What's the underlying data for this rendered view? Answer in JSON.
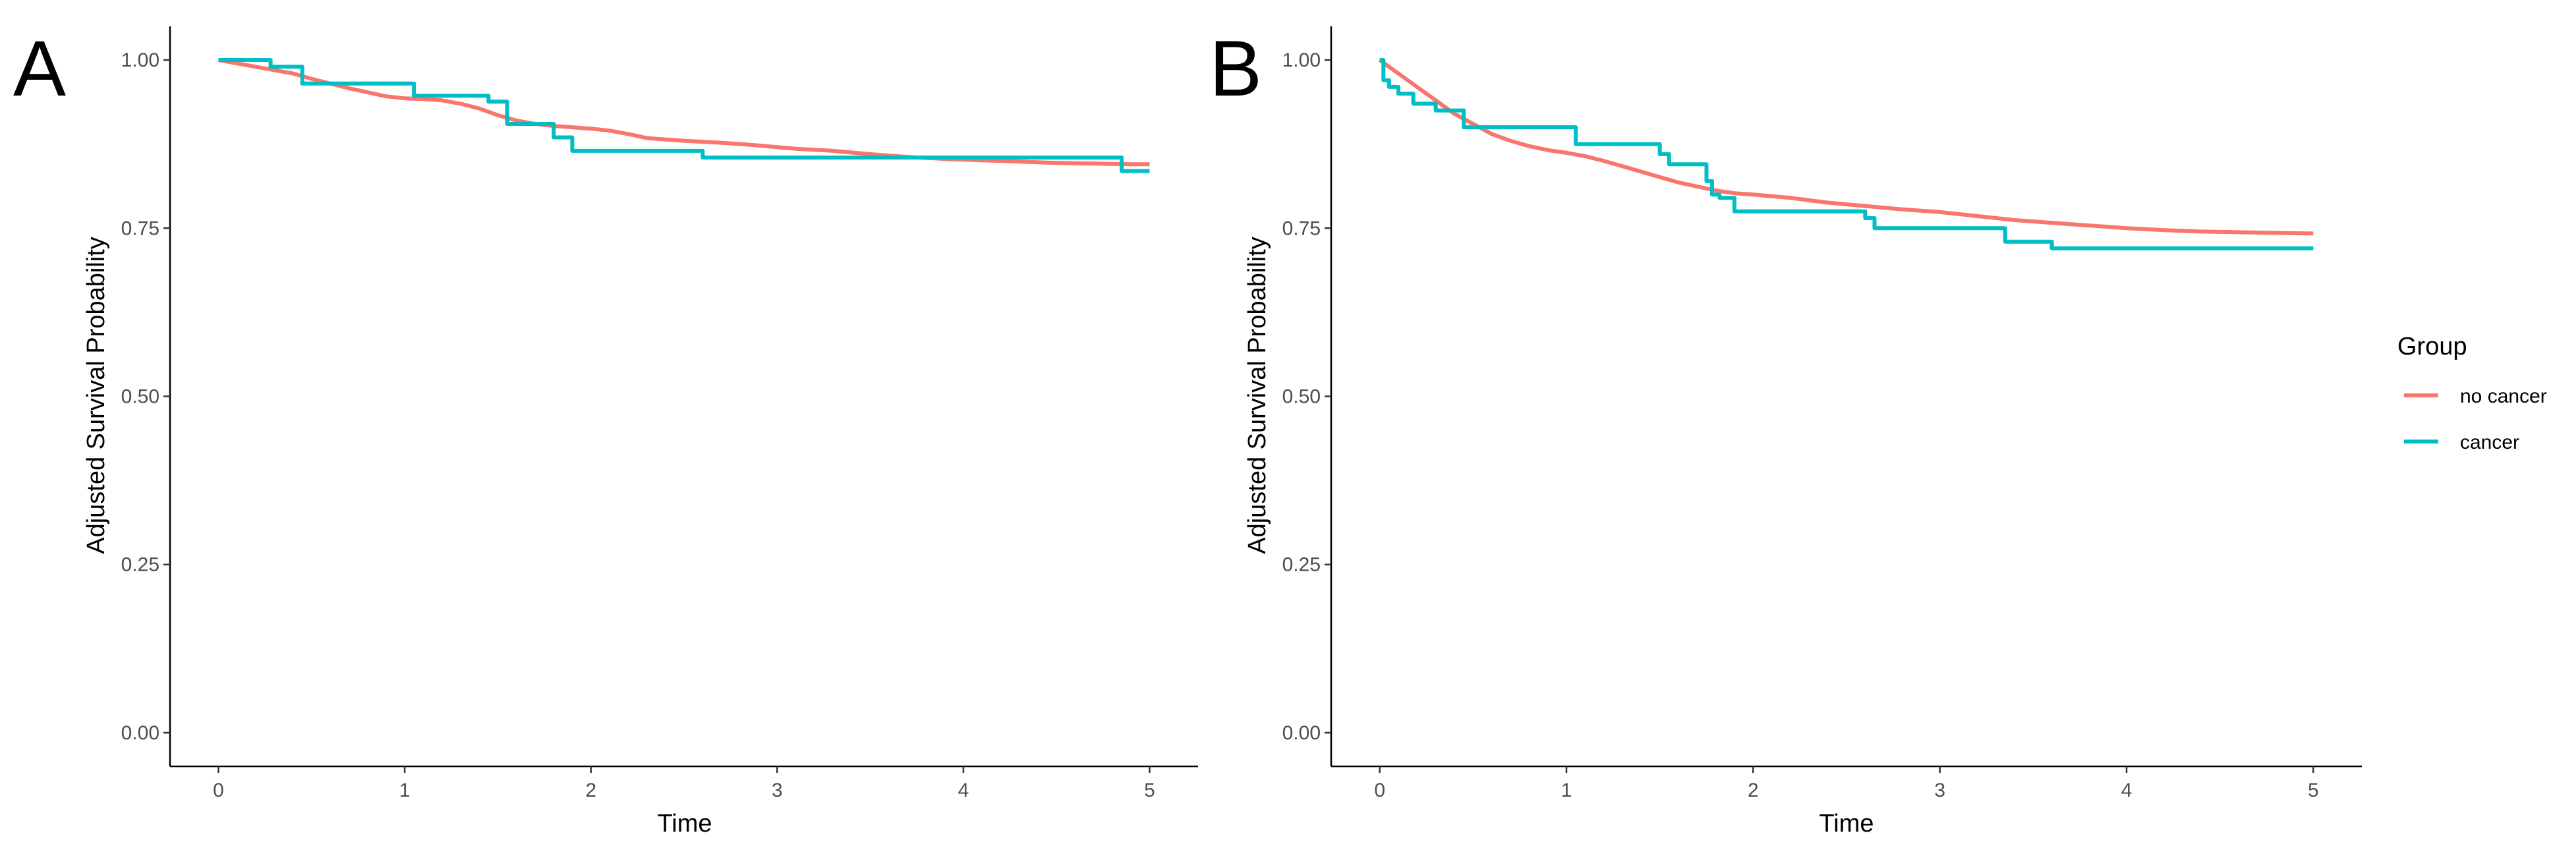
{
  "chart_data": [
    {
      "type": "line",
      "panel_label": "A",
      "xlabel": "Time",
      "ylabel": "Adjusted Survival Probability",
      "xlim": [
        -0.26,
        5.26
      ],
      "ylim": [
        -0.05,
        1.05
      ],
      "xticks": [
        0,
        1,
        2,
        3,
        4,
        5
      ],
      "xtick_labels": [
        "0",
        "1",
        "2",
        "3",
        "4",
        "5"
      ],
      "yticks": [
        0.0,
        0.25,
        0.5,
        0.75,
        1.0
      ],
      "ytick_labels": [
        "0.00",
        "0.25",
        "0.50",
        "0.75",
        "1.00"
      ],
      "grid": false,
      "series": [
        {
          "name": "no cancer",
          "color": "#F8766D",
          "step": false,
          "x": [
            0,
            0.1,
            0.2,
            0.3,
            0.4,
            0.5,
            0.6,
            0.7,
            0.8,
            0.9,
            1.0,
            1.1,
            1.2,
            1.3,
            1.4,
            1.5,
            1.6,
            1.7,
            1.8,
            1.9,
            2.0,
            2.1,
            2.2,
            2.3,
            2.5,
            2.7,
            2.9,
            3.1,
            3.3,
            3.5,
            3.7,
            3.9,
            4.1,
            4.3,
            4.5,
            4.7,
            4.9,
            5.0
          ],
          "y": [
            1.0,
            0.995,
            0.99,
            0.985,
            0.98,
            0.972,
            0.965,
            0.958,
            0.952,
            0.946,
            0.943,
            0.942,
            0.94,
            0.935,
            0.928,
            0.918,
            0.91,
            0.905,
            0.902,
            0.9,
            0.898,
            0.895,
            0.89,
            0.884,
            0.88,
            0.877,
            0.873,
            0.868,
            0.865,
            0.86,
            0.856,
            0.853,
            0.851,
            0.849,
            0.847,
            0.846,
            0.845,
            0.845
          ]
        },
        {
          "name": "cancer",
          "color": "#00BFC4",
          "step": true,
          "x": [
            0,
            0.28,
            0.45,
            1.05,
            1.45,
            1.55,
            1.8,
            1.9,
            2.6,
            4.85,
            5.0
          ],
          "y": [
            1.0,
            0.99,
            0.965,
            0.947,
            0.938,
            0.905,
            0.885,
            0.865,
            0.855,
            0.835,
            0.835
          ]
        }
      ]
    },
    {
      "type": "line",
      "panel_label": "B",
      "xlabel": "Time",
      "ylabel": "Adjusted Survival Probability",
      "xlim": [
        -0.26,
        5.26
      ],
      "ylim": [
        -0.05,
        1.05
      ],
      "xticks": [
        0,
        1,
        2,
        3,
        4,
        5
      ],
      "xtick_labels": [
        "0",
        "1",
        "2",
        "3",
        "4",
        "5"
      ],
      "yticks": [
        0.0,
        0.25,
        0.5,
        0.75,
        1.0
      ],
      "ytick_labels": [
        "0.00",
        "0.25",
        "0.50",
        "0.75",
        "1.00"
      ],
      "grid": false,
      "series": [
        {
          "name": "no cancer",
          "color": "#F8766D",
          "step": false,
          "x": [
            0,
            0.05,
            0.1,
            0.2,
            0.3,
            0.4,
            0.5,
            0.6,
            0.7,
            0.8,
            0.9,
            1.0,
            1.1,
            1.2,
            1.3,
            1.4,
            1.5,
            1.6,
            1.7,
            1.8,
            1.9,
            2.0,
            2.2,
            2.4,
            2.6,
            2.8,
            3.0,
            3.2,
            3.4,
            3.6,
            3.8,
            4.0,
            4.2,
            4.4,
            4.6,
            4.8,
            5.0
          ],
          "y": [
            1.0,
            0.99,
            0.98,
            0.96,
            0.94,
            0.92,
            0.905,
            0.89,
            0.88,
            0.872,
            0.866,
            0.862,
            0.857,
            0.85,
            0.842,
            0.834,
            0.826,
            0.818,
            0.812,
            0.806,
            0.802,
            0.8,
            0.795,
            0.788,
            0.783,
            0.778,
            0.774,
            0.768,
            0.762,
            0.758,
            0.754,
            0.75,
            0.747,
            0.745,
            0.744,
            0.743,
            0.742
          ]
        },
        {
          "name": "cancer",
          "color": "#00BFC4",
          "step": true,
          "x": [
            0,
            0.02,
            0.05,
            0.1,
            0.18,
            0.3,
            0.45,
            1.05,
            1.5,
            1.55,
            1.75,
            1.78,
            1.82,
            1.9,
            2.6,
            2.65,
            3.35,
            3.6,
            5.0
          ],
          "y": [
            1.0,
            0.97,
            0.96,
            0.95,
            0.935,
            0.925,
            0.9,
            0.875,
            0.86,
            0.845,
            0.82,
            0.8,
            0.795,
            0.775,
            0.765,
            0.75,
            0.73,
            0.72,
            0.72
          ]
        }
      ]
    }
  ],
  "legend": {
    "title": "Group",
    "items": [
      {
        "label": "no cancer",
        "color": "#F8766D"
      },
      {
        "label": "cancer",
        "color": "#00BFC4"
      }
    ]
  }
}
